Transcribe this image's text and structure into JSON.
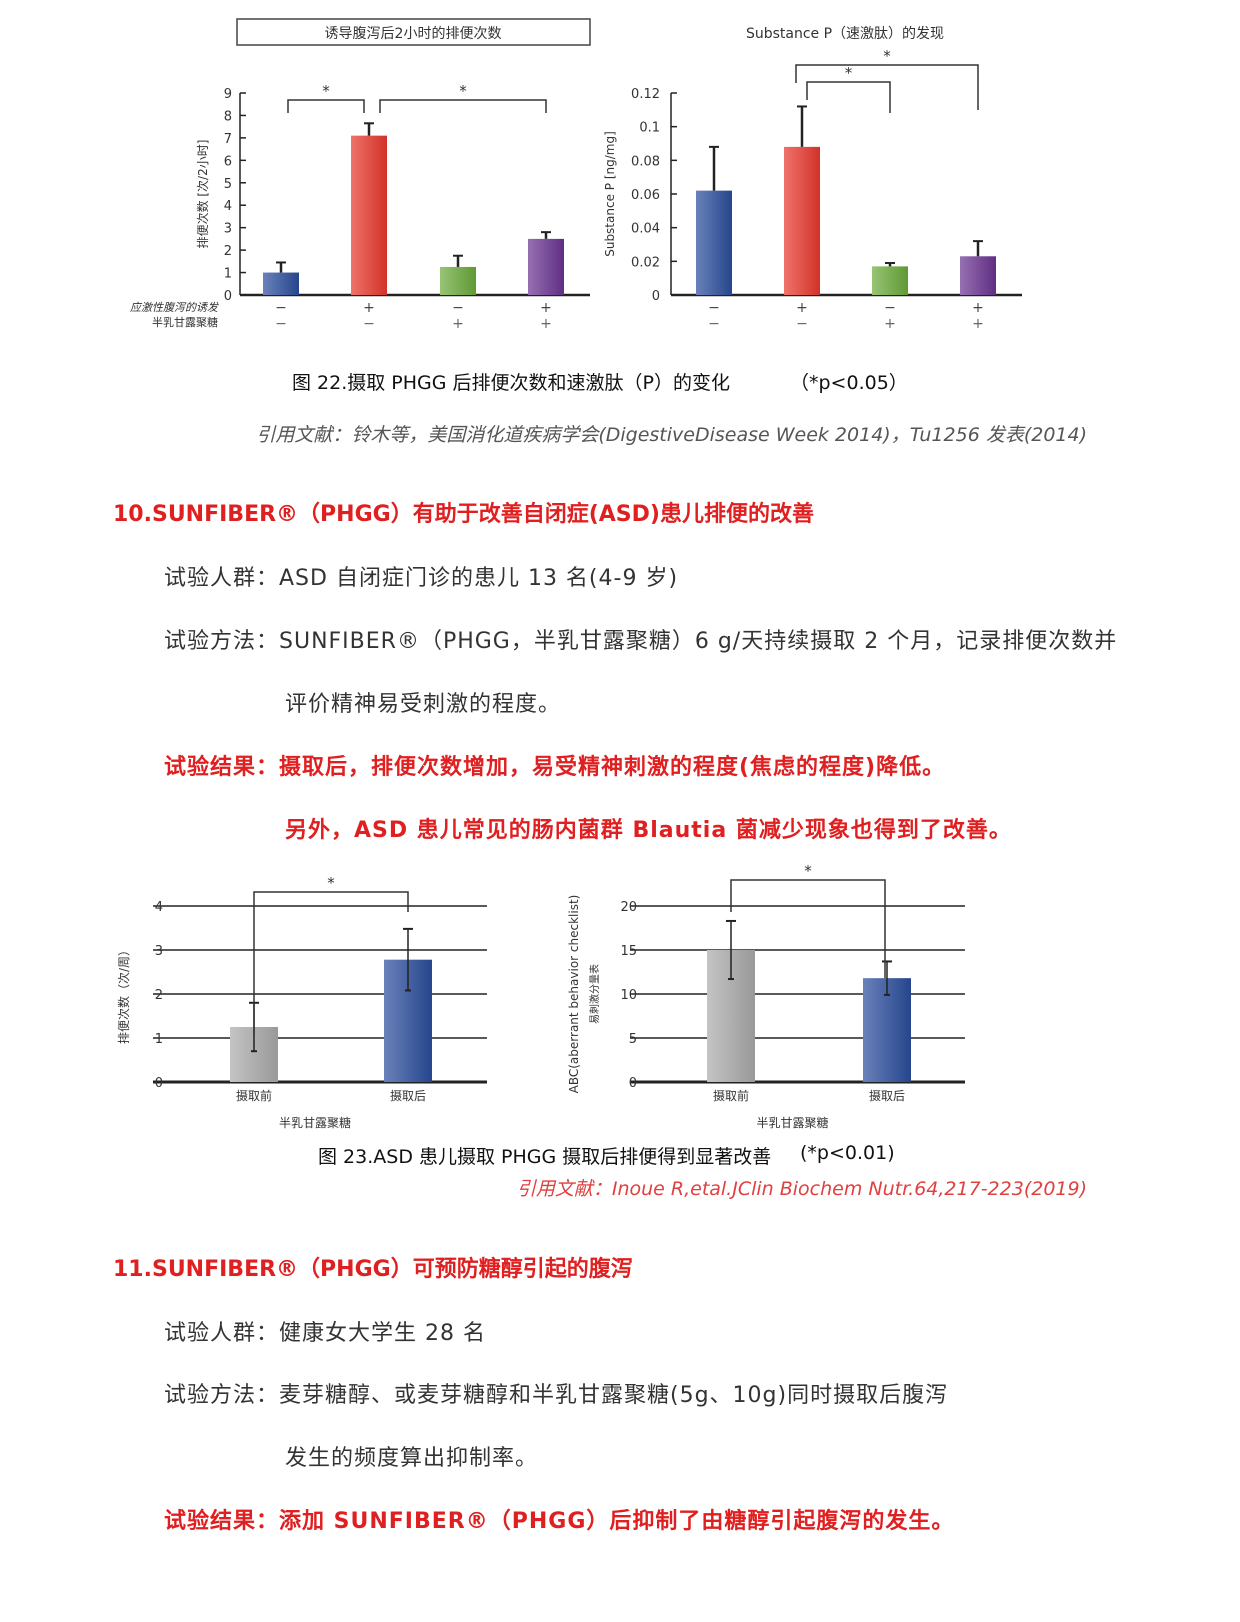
{
  "fig22": {
    "caption": "图 22.摄取 PHGG 后排便次数和速激肽（P）的变化",
    "sig": "（*p<0.05）",
    "citation": "引用文献：铃木等，美国消化道疾病学会(DigestiveDisease Week 2014)，Tu1256 发表(2014)"
  },
  "section10": {
    "heading": "10.SUNFIBER®（PHGG）有助于改善自闭症(ASD)患儿排便的改善",
    "population": "试验人群：ASD 自闭症门诊的患儿 13 名(4-9 岁)",
    "method_1": "试验方法：SUNFIBER®（PHGG，半乳甘露聚糖）6 g/天持续摄取 2 个月，记录排便次数并",
    "method_2": "评价精神易受刺激的程度。",
    "result_1": "试验结果：摄取后，排便次数增加，易受精神刺激的程度(焦虑的程度)降低。",
    "result_2": "另外，ASD 患儿常见的肠内菌群 Blautia 菌减少现象也得到了改善。"
  },
  "fig23": {
    "caption": "图 23.ASD 患儿摄取 PHGG 摄取后排便得到显著改善",
    "sig": "(*p<0.01)",
    "citation": "引用文献：Inoue R,etal.JClin Biochem Nutr.64,217-223(2019)"
  },
  "section11": {
    "heading": "11.SUNFIBER®（PHGG）可预防糖醇引起的腹泻",
    "population": "试验人群：健康女大学生 28 名",
    "method_1": "试验方法：麦芽糖醇、或麦芽糖醇和半乳甘露聚糖(5g、10g)同时摄取后腹泻",
    "method_2": "发生的频度算出抑制率。",
    "result": "试验结果：添加 SUNFIBER®（PHGG）后抑制了由糖醇引起腹泻的发生。"
  },
  "chart_data": [
    {
      "type": "bar",
      "title": "诱导腹泻后2小时的排便次数",
      "ylabel": "排便次数 [次/2小时]",
      "ylim": [
        0,
        9
      ],
      "yticks": [
        "0",
        "1",
        "2",
        "3",
        "4",
        "5",
        "6",
        "7",
        "8",
        "9"
      ],
      "row_labels": [
        "应激性腹泻的诱发",
        "半乳甘露聚糖"
      ],
      "categories": [
        [
          "−",
          "−"
        ],
        [
          "+",
          "−"
        ],
        [
          "−",
          "+"
        ],
        [
          "+",
          "+"
        ]
      ],
      "values": [
        1.0,
        7.1,
        1.25,
        2.5
      ],
      "errors": [
        0.45,
        0.55,
        0.5,
        0.3
      ],
      "colors": [
        "#2a4d9c",
        "#e8372c",
        "#6aaa3a",
        "#6a3391"
      ],
      "significance": [
        {
          "from": 0,
          "to": 1,
          "label": "*"
        },
        {
          "from": 1,
          "to": 3,
          "label": "*"
        }
      ],
      "grid": false
    },
    {
      "type": "bar",
      "title": "Substance P（速激肽）的发现",
      "ylabel": "Substance P [ng/mg]",
      "ylim": [
        0,
        0.12
      ],
      "yticks": [
        "0",
        "0.02",
        "0.04",
        "0.06",
        "0.08",
        "0.1",
        "0.12"
      ],
      "categories": [
        [
          "−",
          "−"
        ],
        [
          "+",
          "−"
        ],
        [
          "−",
          "+"
        ],
        [
          "+",
          "+"
        ]
      ],
      "values": [
        0.062,
        0.088,
        0.017,
        0.023
      ],
      "errors": [
        0.026,
        0.024,
        0.002,
        0.009
      ],
      "colors": [
        "#2a4d9c",
        "#e8372c",
        "#6aaa3a",
        "#6a3391"
      ],
      "significance": [
        {
          "from": 1,
          "to": 2,
          "label": "*"
        },
        {
          "from": 1,
          "to": 3,
          "label": "*"
        }
      ],
      "grid": false
    },
    {
      "type": "bar",
      "ylabel": "排便次数（次/周）",
      "xlabel": "半乳甘露聚糖",
      "ylim": [
        0,
        4
      ],
      "yticks": [
        "0",
        "1",
        "2",
        "3",
        "4"
      ],
      "categories": [
        "摄取前",
        "摄取后"
      ],
      "values": [
        1.25,
        2.78
      ],
      "errors": [
        0.55,
        0.7
      ],
      "colors": [
        "#aaaaaa",
        "#2a4d9c"
      ],
      "significance": [
        {
          "from": 0,
          "to": 1,
          "label": "*"
        }
      ],
      "grid": true
    },
    {
      "type": "bar",
      "ylabel": "ABC(aberrant behavior checklist)",
      "ylabel2": "易刺激分量表",
      "xlabel": "半乳甘露聚糖",
      "ylim": [
        0,
        20
      ],
      "yticks": [
        "0",
        "5",
        "10",
        "15",
        "20"
      ],
      "categories": [
        "摄取前",
        "摄取后"
      ],
      "values": [
        15.0,
        11.8
      ],
      "errors": [
        3.3,
        1.9
      ],
      "colors": [
        "#aaaaaa",
        "#2a4d9c"
      ],
      "significance": [
        {
          "from": 0,
          "to": 1,
          "label": "*"
        }
      ],
      "grid": true
    }
  ]
}
